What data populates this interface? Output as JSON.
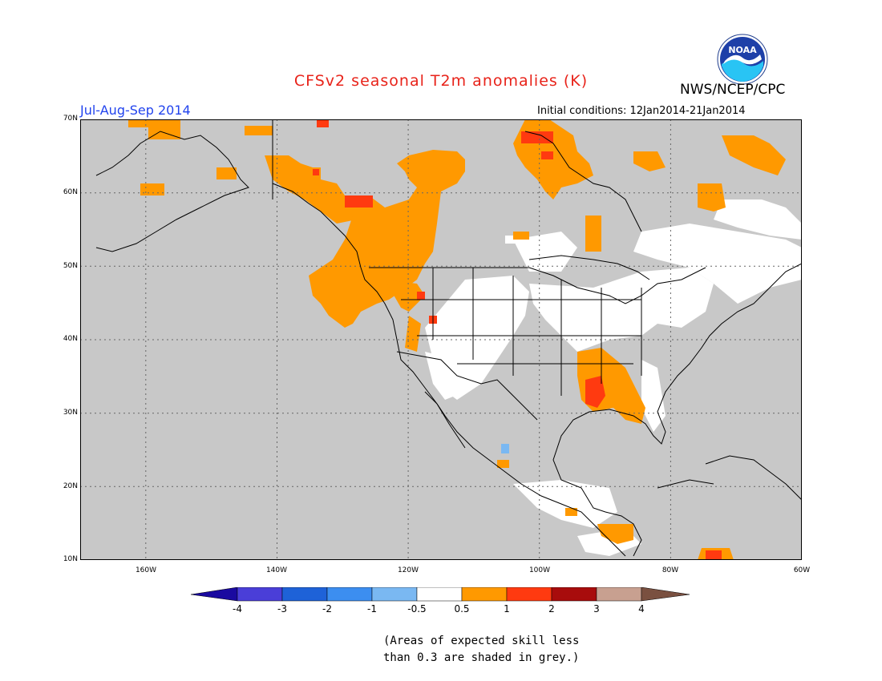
{
  "header": {
    "title": "CFSv2 seasonal T2m anomalies (K)",
    "agency": "NWS/NCEP/CPC",
    "season": "Jul-Aug-Sep 2014",
    "initial_conditions": "Initial conditions: 12Jan2014-21Jan2014",
    "logo_text": "NOAA"
  },
  "map": {
    "region": "North America",
    "lat_labels": [
      "70N",
      "60N",
      "50N",
      "40N",
      "30N",
      "20N",
      "10N"
    ],
    "lon_labels": [
      "160W",
      "140W",
      "120W",
      "100W",
      "80W",
      "60W"
    ],
    "grid": "dotted"
  },
  "colorbar": {
    "labels": [
      "-4",
      "-3",
      "-2",
      "-1",
      "-0.5",
      "0.5",
      "1",
      "2",
      "3",
      "4"
    ],
    "colors": [
      "#1a0aa0",
      "#4a3ed8",
      "#1e62d8",
      "#3c8ef0",
      "#7ab8f2",
      "#ffffff",
      "#ff9900",
      "#ff3a10",
      "#a80c0c",
      "#c8a090",
      "#7a5040"
    ],
    "skill_grey": "#c8c8c8",
    "land_outline": "#000000"
  },
  "footnote": {
    "line1": "(Areas of expected skill less",
    "line2": "than 0.3 are shaded in grey.)"
  }
}
